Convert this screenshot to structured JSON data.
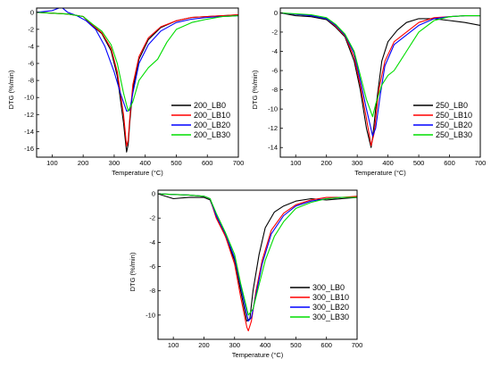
{
  "chart_data": [
    {
      "type": "line",
      "xlabel": "Temperature (°C)",
      "ylabel": "DTG (%/min)",
      "xlim": [
        50,
        700
      ],
      "ylim": [
        -17,
        0.5
      ],
      "xticks": [
        100,
        200,
        300,
        400,
        500,
        600,
        700
      ],
      "yticks": [
        0,
        -2,
        -4,
        -6,
        -8,
        -10,
        -12,
        -14,
        -16
      ],
      "legend_position": "bottom-right",
      "series": [
        {
          "name": "200_LB0",
          "color": "#000000",
          "x": [
            50,
            150,
            200,
            230,
            260,
            290,
            310,
            330,
            340,
            345,
            350,
            360,
            380,
            410,
            450,
            500,
            550,
            600,
            650,
            700
          ],
          "y": [
            0,
            -0.2,
            -0.5,
            -1.6,
            -2.5,
            -4.5,
            -7.5,
            -13,
            -16.4,
            -15.5,
            -13,
            -9,
            -5.5,
            -3.2,
            -1.8,
            -1,
            -0.6,
            -0.5,
            -0.4,
            -0.3
          ]
        },
        {
          "name": "200_LB10",
          "color": "#ff0000",
          "x": [
            50,
            150,
            200,
            230,
            260,
            290,
            310,
            330,
            340,
            345,
            350,
            360,
            380,
            410,
            450,
            500,
            550,
            600,
            650,
            700
          ],
          "y": [
            0,
            -0.2,
            -0.5,
            -1.5,
            -2.4,
            -4.2,
            -7,
            -12,
            -15.7,
            -15,
            -12.5,
            -8.5,
            -5.2,
            -3,
            -1.7,
            -1,
            -0.6,
            -0.5,
            -0.4,
            -0.3
          ]
        },
        {
          "name": "200_LB20",
          "color": "#0000ff",
          "x": [
            50,
            100,
            130,
            150,
            180,
            210,
            240,
            270,
            300,
            320,
            340,
            350,
            360,
            380,
            410,
            450,
            500,
            550,
            600,
            650,
            700
          ],
          "y": [
            0,
            0.2,
            0.6,
            0,
            -0.4,
            -1,
            -2,
            -4,
            -7,
            -9.5,
            -11.6,
            -11.5,
            -9.5,
            -6,
            -3.8,
            -2.2,
            -1.2,
            -0.8,
            -0.6,
            -0.5,
            -0.4
          ]
        },
        {
          "name": "200_LB30",
          "color": "#00dd00",
          "x": [
            50,
            150,
            200,
            230,
            260,
            290,
            310,
            330,
            345,
            360,
            380,
            410,
            440,
            470,
            500,
            550,
            600,
            650,
            700
          ],
          "y": [
            0,
            -0.2,
            -0.5,
            -1.4,
            -2.2,
            -3.8,
            -6,
            -9.5,
            -11.6,
            -10.5,
            -8,
            -6.5,
            -5.5,
            -3.5,
            -2,
            -1.2,
            -0.8,
            -0.5,
            -0.4
          ]
        }
      ]
    },
    {
      "type": "line",
      "xlabel": "Temperature (°C)",
      "ylabel": "DTG (%/min)",
      "xlim": [
        50,
        700
      ],
      "ylim": [
        -15,
        0.5
      ],
      "xticks": [
        100,
        200,
        300,
        400,
        500,
        600,
        700
      ],
      "yticks": [
        0,
        -2,
        -4,
        -6,
        -8,
        -10,
        -12,
        -14
      ],
      "legend_position": "bottom-right",
      "series": [
        {
          "name": "250_LB0",
          "color": "#000000",
          "x": [
            50,
            100,
            150,
            200,
            230,
            260,
            290,
            310,
            330,
            345,
            350,
            360,
            380,
            400,
            430,
            460,
            500,
            550,
            600,
            650,
            700
          ],
          "y": [
            0,
            -0.3,
            -0.4,
            -0.7,
            -1.5,
            -2.5,
            -5,
            -8,
            -12,
            -14,
            -13,
            -10,
            -5,
            -3,
            -1.8,
            -1,
            -0.6,
            -0.6,
            -0.8,
            -1,
            -1.3
          ]
        },
        {
          "name": "250_LB10",
          "color": "#ff0000",
          "x": [
            50,
            150,
            200,
            230,
            260,
            290,
            310,
            330,
            345,
            355,
            370,
            390,
            420,
            460,
            500,
            550,
            600,
            650,
            700
          ],
          "y": [
            0,
            -0.3,
            -0.6,
            -1.4,
            -2.4,
            -4.6,
            -7.5,
            -11,
            -13.8,
            -12.5,
            -8,
            -5,
            -3,
            -2,
            -1,
            -0.5,
            -0.4,
            -0.3,
            -0.3
          ]
        },
        {
          "name": "250_LB20",
          "color": "#0000ff",
          "x": [
            50,
            150,
            200,
            230,
            260,
            290,
            310,
            330,
            350,
            360,
            375,
            390,
            420,
            460,
            500,
            550,
            600,
            650,
            700
          ],
          "y": [
            0,
            -0.3,
            -0.6,
            -1.3,
            -2.3,
            -4.2,
            -7,
            -10,
            -12.8,
            -12,
            -8.5,
            -5.5,
            -3.3,
            -2.3,
            -1.3,
            -0.6,
            -0.4,
            -0.3,
            -0.3
          ]
        },
        {
          "name": "250_LB30",
          "color": "#00dd00",
          "x": [
            50,
            150,
            200,
            230,
            260,
            290,
            310,
            330,
            350,
            360,
            380,
            400,
            420,
            440,
            460,
            480,
            500,
            550,
            600,
            650,
            700
          ],
          "y": [
            0,
            -0.2,
            -0.5,
            -1.2,
            -2.2,
            -4,
            -6.5,
            -9,
            -10.8,
            -9.5,
            -7.5,
            -6.5,
            -6,
            -5,
            -4,
            -3,
            -2,
            -0.8,
            -0.4,
            -0.3,
            -0.3
          ]
        }
      ]
    },
    {
      "type": "line",
      "xlabel": "Temperature (°C)",
      "ylabel": "DTG (%/min)",
      "xlim": [
        50,
        700
      ],
      "ylim": [
        -12,
        0.3
      ],
      "xticks": [
        100,
        200,
        300,
        400,
        500,
        600,
        700
      ],
      "yticks": [
        0,
        -2,
        -4,
        -6,
        -8,
        -10
      ],
      "legend_position": "bottom-right",
      "series": [
        {
          "name": "300_LB0",
          "color": "#000000",
          "x": [
            50,
            100,
            150,
            200,
            220,
            240,
            270,
            300,
            320,
            340,
            350,
            360,
            380,
            400,
            430,
            460,
            500,
            550,
            600,
            650,
            700
          ],
          "y": [
            0,
            -0.4,
            -0.3,
            -0.3,
            -0.5,
            -1.8,
            -3.5,
            -5.5,
            -8,
            -10.5,
            -10.3,
            -8,
            -5,
            -2.8,
            -1.5,
            -1,
            -0.6,
            -0.4,
            -0.5,
            -0.4,
            -0.3
          ]
        },
        {
          "name": "300_LB10",
          "color": "#ff0000",
          "x": [
            50,
            150,
            200,
            220,
            240,
            270,
            300,
            320,
            340,
            345,
            355,
            370,
            390,
            420,
            460,
            500,
            550,
            600,
            650,
            700
          ],
          "y": [
            0,
            -0.1,
            -0.2,
            -0.4,
            -2,
            -3.5,
            -5.8,
            -8.5,
            -11,
            -11.3,
            -10.5,
            -8,
            -5.5,
            -3,
            -1.6,
            -0.9,
            -0.5,
            -0.3,
            -0.3,
            -0.2
          ]
        },
        {
          "name": "300_LB20",
          "color": "#0000ff",
          "x": [
            50,
            150,
            200,
            220,
            240,
            270,
            300,
            320,
            345,
            355,
            370,
            390,
            420,
            460,
            500,
            550,
            600,
            650,
            700
          ],
          "y": [
            0,
            -0.1,
            -0.2,
            -0.4,
            -1.8,
            -3.3,
            -5.3,
            -7.6,
            -10.5,
            -10.2,
            -8.3,
            -5.8,
            -3.3,
            -1.8,
            -1,
            -0.6,
            -0.4,
            -0.3,
            -0.3
          ]
        },
        {
          "name": "300_LB30",
          "color": "#00dd00",
          "x": [
            50,
            150,
            200,
            220,
            240,
            270,
            300,
            320,
            345,
            360,
            380,
            400,
            430,
            460,
            500,
            550,
            600,
            650,
            700
          ],
          "y": [
            0,
            -0.1,
            -0.2,
            -0.4,
            -1.6,
            -3.2,
            -5,
            -7.4,
            -10,
            -9.5,
            -7.5,
            -5.5,
            -3.5,
            -2.3,
            -1.2,
            -0.7,
            -0.4,
            -0.3,
            -0.3
          ]
        }
      ]
    }
  ]
}
